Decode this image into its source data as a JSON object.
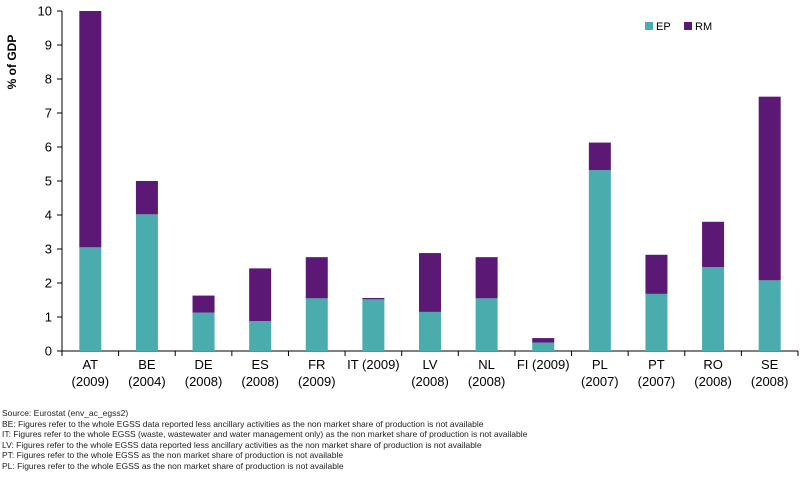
{
  "chart_data": {
    "type": "bar",
    "stacked": true,
    "ylabel": "% of GDP",
    "ylim": [
      0,
      10
    ],
    "yticks": [
      0,
      1,
      2,
      3,
      4,
      5,
      6,
      7,
      8,
      9,
      10
    ],
    "grid": false,
    "legend_position": "top-right",
    "categories": [
      [
        "AT",
        "(2009)"
      ],
      [
        "BE",
        "(2004)"
      ],
      [
        "DE",
        "(2008)"
      ],
      [
        "ES",
        "(2008)"
      ],
      [
        "FR",
        "(2009)"
      ],
      [
        "IT (2009)"
      ],
      [
        "LV",
        "(2008)"
      ],
      [
        "NL",
        "(2008)"
      ],
      [
        "FI (2009)"
      ],
      [
        "PL",
        "(2007)"
      ],
      [
        "PT",
        "(2007)"
      ],
      [
        "RO",
        "(2008)"
      ],
      [
        "SE",
        "(2008)"
      ]
    ],
    "series": [
      {
        "name": "EP",
        "color": "#4bacad",
        "values": [
          3.05,
          4.02,
          1.13,
          0.88,
          1.55,
          1.52,
          1.15,
          1.55,
          0.25,
          5.32,
          1.68,
          2.47,
          2.08
        ]
      },
      {
        "name": "RM",
        "color": "#5c1875",
        "values": [
          6.95,
          0.98,
          0.5,
          1.55,
          1.21,
          0.04,
          1.73,
          1.21,
          0.13,
          0.81,
          1.15,
          1.33,
          5.4
        ]
      }
    ]
  },
  "notes": [
    "Source: Eurostat (env_ac_egss2)",
    "BE: Figures refer to the whole EGSS data reported less ancillary activities as the non market share of production is not available",
    "IT: Figures refer to the whole EGSS (waste, wastewater and water management only) as the non market share of production is not available",
    "LV: Figures refer to the whole EGSS data reported less ancillary activities as the non market share of production is not available",
    "PT: Figures refer to the whole EGSS as the non market share of production is not available",
    "PL: Figures refer to the whole EGSS as the non market share of production is not available"
  ]
}
